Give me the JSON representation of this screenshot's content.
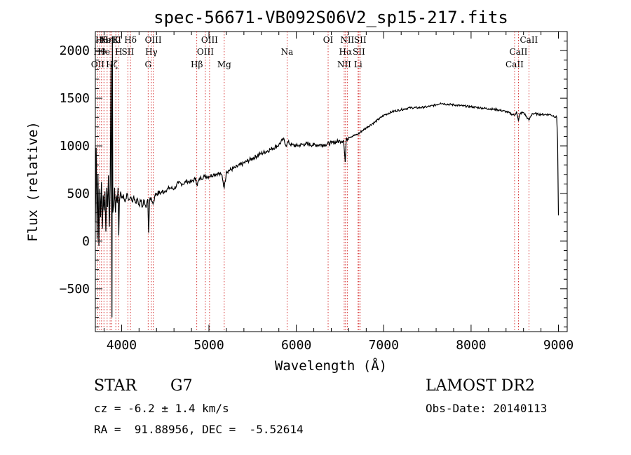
{
  "chart_data": {
    "type": "line",
    "title": "spec-56671-VB092S06V2_sp15-217.fits",
    "xlabel": "Wavelength (Å)",
    "ylabel": "Flux (relative)",
    "xlim": [
      3700,
      9100
    ],
    "ylim": [
      -950,
      2200
    ],
    "xticks": [
      4000,
      5000,
      6000,
      7000,
      8000,
      9000
    ],
    "yticks": [
      -500,
      0,
      500,
      1000,
      1500,
      2000
    ],
    "grid": false,
    "series": [
      {
        "points": [
          [
            3700,
            200
          ],
          [
            3710,
            980
          ],
          [
            3720,
            20
          ],
          [
            3730,
            700
          ],
          [
            3740,
            -50
          ],
          [
            3750,
            550
          ],
          [
            3760,
            250
          ],
          [
            3770,
            620
          ],
          [
            3780,
            130
          ],
          [
            3790,
            480
          ],
          [
            3800,
            320
          ],
          [
            3810,
            520
          ],
          [
            3820,
            100
          ],
          [
            3830,
            560
          ],
          [
            3840,
            360
          ],
          [
            3850,
            690
          ],
          [
            3860,
            150
          ],
          [
            3870,
            600
          ],
          [
            3880,
            1850
          ],
          [
            3890,
            -800
          ],
          [
            3895,
            2150
          ],
          [
            3900,
            300
          ],
          [
            3910,
            380
          ],
          [
            3920,
            560
          ],
          [
            3930,
            300
          ],
          [
            3940,
            480
          ],
          [
            3950,
            400
          ],
          [
            3960,
            560
          ],
          [
            3968,
            60
          ],
          [
            3975,
            420
          ],
          [
            3990,
            520
          ],
          [
            4000,
            450
          ],
          [
            4020,
            490
          ],
          [
            4040,
            410
          ],
          [
            4060,
            500
          ],
          [
            4080,
            430
          ],
          [
            4100,
            460
          ],
          [
            4120,
            420
          ],
          [
            4140,
            470
          ],
          [
            4160,
            400
          ],
          [
            4180,
            450
          ],
          [
            4200,
            380
          ],
          [
            4220,
            420
          ],
          [
            4240,
            360
          ],
          [
            4260,
            430
          ],
          [
            4280,
            350
          ],
          [
            4300,
            440
          ],
          [
            4310,
            90
          ],
          [
            4320,
            420
          ],
          [
            4340,
            450
          ],
          [
            4360,
            390
          ],
          [
            4380,
            470
          ],
          [
            4400,
            500
          ],
          [
            4450,
            510
          ],
          [
            4500,
            530
          ],
          [
            4550,
            560
          ],
          [
            4600,
            550
          ],
          [
            4650,
            610
          ],
          [
            4700,
            600
          ],
          [
            4750,
            630
          ],
          [
            4800,
            620
          ],
          [
            4850,
            660
          ],
          [
            4861,
            590
          ],
          [
            4900,
            660
          ],
          [
            4950,
            680
          ],
          [
            5000,
            680
          ],
          [
            5050,
            700
          ],
          [
            5100,
            710
          ],
          [
            5150,
            690
          ],
          [
            5175,
            560
          ],
          [
            5200,
            730
          ],
          [
            5300,
            770
          ],
          [
            5400,
            820
          ],
          [
            5500,
            870
          ],
          [
            5600,
            920
          ],
          [
            5700,
            960
          ],
          [
            5800,
            1010
          ],
          [
            5850,
            1070
          ],
          [
            5890,
            1000
          ],
          [
            5900,
            1040
          ],
          [
            5950,
            1010
          ],
          [
            6000,
            1000
          ],
          [
            6100,
            1020
          ],
          [
            6200,
            1010
          ],
          [
            6300,
            1010
          ],
          [
            6400,
            1030
          ],
          [
            6500,
            1050
          ],
          [
            6540,
            1060
          ],
          [
            6560,
            830
          ],
          [
            6570,
            1060
          ],
          [
            6600,
            1090
          ],
          [
            6700,
            1120
          ],
          [
            6800,
            1190
          ],
          [
            6900,
            1250
          ],
          [
            7000,
            1320
          ],
          [
            7100,
            1360
          ],
          [
            7200,
            1380
          ],
          [
            7300,
            1400
          ],
          [
            7400,
            1400
          ],
          [
            7500,
            1410
          ],
          [
            7600,
            1430
          ],
          [
            7650,
            1450
          ],
          [
            7700,
            1440
          ],
          [
            7800,
            1430
          ],
          [
            7900,
            1420
          ],
          [
            8000,
            1410
          ],
          [
            8100,
            1400
          ],
          [
            8200,
            1390
          ],
          [
            8300,
            1380
          ],
          [
            8400,
            1360
          ],
          [
            8498,
            1320
          ],
          [
            8520,
            1360
          ],
          [
            8542,
            1260
          ],
          [
            8560,
            1340
          ],
          [
            8600,
            1350
          ],
          [
            8662,
            1270
          ],
          [
            8700,
            1340
          ],
          [
            8800,
            1330
          ],
          [
            8900,
            1330
          ],
          [
            8980,
            1300
          ],
          [
            8990,
            1050
          ],
          [
            9000,
            270
          ]
        ]
      }
    ],
    "line_markers": [
      {
        "x": 3727,
        "row": 3,
        "label": "OII"
      },
      {
        "x": 3750,
        "row": 2,
        "label": "Hθ"
      },
      {
        "x": 3771,
        "row": 1,
        "label": "Hθ"
      },
      {
        "x": 3798,
        "row": 2,
        "label": "He"
      },
      {
        "x": 3835,
        "row": 1,
        "label": "Hη"
      },
      {
        "x": 3869,
        "row": 1,
        "label": "NeIII"
      },
      {
        "x": 3889,
        "row": 3,
        "label": "Hζ"
      },
      {
        "x": 3934,
        "row": 1,
        "label": "K"
      },
      {
        "x": 3968,
        "row": 2,
        "label": "H"
      },
      {
        "x": 4072,
        "row": 2,
        "label": "SII"
      },
      {
        "x": 4102,
        "row": 1,
        "label": "Hδ"
      },
      {
        "x": 4304,
        "row": 3,
        "label": "G"
      },
      {
        "x": 4341,
        "row": 2,
        "label": "Hγ"
      },
      {
        "x": 4363,
        "row": 1,
        "label": "OIII"
      },
      {
        "x": 4861,
        "row": 3,
        "label": "Hβ"
      },
      {
        "x": 4959,
        "row": 2,
        "label": "OIII"
      },
      {
        "x": 5007,
        "row": 1,
        "label": "OIII"
      },
      {
        "x": 5175,
        "row": 3,
        "label": "Mg"
      },
      {
        "x": 5894,
        "row": 2,
        "label": "Na"
      },
      {
        "x": 6364,
        "row": 1,
        "label": "OI"
      },
      {
        "x": 6548,
        "row": 3,
        "label": "NII"
      },
      {
        "x": 6563,
        "row": 2,
        "label": "Hα"
      },
      {
        "x": 6583,
        "row": 1,
        "label": "NII"
      },
      {
        "x": 6716,
        "row": 2,
        "label": "SII"
      },
      {
        "x": 6707,
        "row": 3,
        "label": "Li"
      },
      {
        "x": 6731,
        "row": 1,
        "label": "SII"
      },
      {
        "x": 8498,
        "row": 3,
        "label": "CaII"
      },
      {
        "x": 8542,
        "row": 2,
        "label": "CaII"
      },
      {
        "x": 8662,
        "row": 1,
        "label": "CaII"
      }
    ]
  },
  "info": {
    "class_label": "STAR",
    "subclass_label": "G7",
    "redshift_line": "cz = -6.2 ± 1.4 km/s",
    "coords_line": "RA =  91.88956, DEC =  -5.52614",
    "survey_label": "LAMOST DR2",
    "obs_date_line": "Obs-Date: 20140113"
  }
}
